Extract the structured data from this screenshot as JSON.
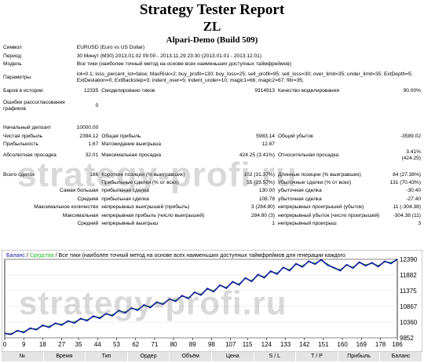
{
  "header": {
    "title": "Strategy Tester Report",
    "ea": "ZL",
    "server": "Alpari-Demo (Build 509)"
  },
  "info": {
    "symbol_label": "Символ",
    "symbol": "EURUSD (Euro vs US Dollar)",
    "period_label": "Период",
    "period": "30 Минут (M30) 2013.01.02 09:00 - 2013.11.29 23:30 (2013.01.01 - 2013.12.01)",
    "model_label": "Модель",
    "model": "Все тики (наиболее точный метод на основе всех наименьших доступных таймфреймов)",
    "params_label": "Параметры",
    "params": "lot=0.1; loss_percent_lot=false; MaxRisk=2; buy_profit=130; buy_loss=25; sell_profit=95; sell_loss=30; over_limit=35; under_limit=35; ExtDepth=5; ExtDeviation=0; ExtBackstep=3; indent_over=5; indent_under=10; magic1=66; magic2=67; filtr=35;"
  },
  "stats": {
    "bars_label": "Баров в истории",
    "bars": "12335",
    "ticks_label": "Смоделировано тиков",
    "ticks": "9314913",
    "quality_label": "Качество моделирования",
    "quality": "90.00%",
    "mismatch_label": "Ошибки рассогласования графиков",
    "mismatch": "0",
    "deposit_label": "Начальный депозит",
    "deposit": "10000.00",
    "netprofit_label": "Чистая прибыль",
    "netprofit": "2394.12",
    "grossprofit_label": "Общая прибыль",
    "grossprofit": "5983.14",
    "grossloss_label": "Общий убыток",
    "grossloss": "-3589.02",
    "pf_label": "Прибыльность",
    "pf": "1.67",
    "expected_label": "Матожидание выигрыша",
    "expected": "12.87",
    "absdd_label": "Абсолютная просадка",
    "absdd": "32.01",
    "maxdd_label": "Максимальная просадка",
    "maxdd": "424.25 (3.41%)",
    "reldd_label": "Относительная просадка",
    "reldd": "3.41% (424.25)",
    "trades_label": "Всего сделок",
    "trades": "186",
    "short_label": "Короткие позиции (% выигравших)",
    "short": "102 (31.37%)",
    "long_label": "Длинные позиции (% выигравших)",
    "long": "84 (27.38%)",
    "profit_trades_label": "Прибыльные сделки (% от всех)",
    "profit_trades": "55 (29.57%)",
    "loss_trades_label": "Убыточные сделки (% от всех)",
    "loss_trades": "131 (70.43%)",
    "largest_label": "Самая большая",
    "largest_p_label": "прибыльная сделка",
    "largest_p": "130.00",
    "largest_l_label": "убыточная сделка",
    "largest_l": "-30.40",
    "average_label": "Средняя",
    "avg_p_label": "прибыльная сделка",
    "avg_p": "108.78",
    "avg_l_label": "убыточная сделка",
    "avg_l": "-27.40",
    "maxcons_label": "Максимальное количество",
    "maxcons_w_label": "непрерывных выигрышей (прибыль)",
    "maxcons_w": "3 (284.80)",
    "maxcons_l_label": "непрерывных проигрышей (убыток)",
    "maxcons_l": "11 (-304.38)",
    "maxconp_label": "Максимальная",
    "maxconp_w_label": "непрерывная прибыль (число выигрышей)",
    "maxconp_w": "284.80 (3)",
    "maxconp_l_label": "непрерывный убыток (число проигрышей)",
    "maxconp_l": "-304.38 (11)",
    "avgcons_label": "Средний",
    "avgcons_w_label": "непрерывный выигрыш",
    "avgcons_w": "1",
    "avgcons_l_label": "непрерывный проигрыш",
    "avgcons_l": "3"
  },
  "watermark": "strategy-profi.ru",
  "chart": {
    "legend_balance": "Баланс",
    "legend_sep": " / ",
    "legend_equity": "Средства",
    "legend_rest": " / Все тики (наиболее точный метод на основе всех наименьших доступных таймфреймов для генерации каждого",
    "colors": {
      "balance": "#1515a8",
      "equity": "#22bb22"
    }
  },
  "chart_data": {
    "type": "line",
    "y_ticks": [
      9852,
      10360,
      10867,
      11375,
      11882,
      12390
    ],
    "x_ticks": [
      0,
      9,
      18,
      27,
      35,
      44,
      53,
      62,
      71,
      80,
      89,
      98,
      107,
      115,
      124,
      133,
      142,
      151,
      160,
      169,
      178,
      186
    ],
    "xlim": [
      0,
      186
    ],
    "ylim": [
      9852,
      12390
    ],
    "series": [
      {
        "name": "Баланс",
        "x": [
          0,
          3,
          6,
          9,
          12,
          15,
          18,
          21,
          24,
          27,
          30,
          33,
          36,
          39,
          42,
          45,
          48,
          51,
          54,
          57,
          60,
          63,
          66,
          69,
          72,
          75,
          78,
          81,
          84,
          87,
          90,
          93,
          96,
          99,
          102,
          105,
          108,
          111,
          114,
          117,
          120,
          123,
          126,
          129,
          132,
          135,
          138,
          141,
          144,
          147,
          150,
          153,
          156,
          159,
          162,
          165,
          168,
          171,
          174,
          177,
          180,
          183,
          186
        ],
        "values": [
          10000,
          9960,
          10090,
          10020,
          10170,
          10110,
          10260,
          10190,
          10330,
          10260,
          10400,
          10330,
          10480,
          10400,
          10560,
          10480,
          10640,
          10560,
          10740,
          10650,
          10820,
          10740,
          10920,
          10830,
          11010,
          10930,
          11110,
          11030,
          11220,
          11120,
          11330,
          11230,
          11450,
          11340,
          11560,
          11450,
          11670,
          11560,
          11790,
          11670,
          11900,
          11790,
          12010,
          11910,
          12130,
          12020,
          12250,
          12140,
          12330,
          12230,
          12380,
          12200,
          12120,
          12020,
          12220,
          12100,
          12300,
          12180,
          12280,
          12150,
          12330,
          12250,
          12394
        ]
      }
    ]
  },
  "footer": {
    "cols": [
      "№",
      "Время",
      "Тип",
      "Ордер",
      "Объём",
      "Цена",
      "S / L",
      "T / P",
      "Прибыль",
      "Баланс"
    ]
  }
}
